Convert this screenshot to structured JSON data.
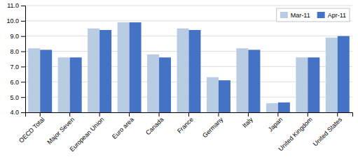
{
  "chart_data": {
    "type": "bar",
    "categories": [
      "OECD Total",
      "Major Seven",
      "European Union",
      "Euro area",
      "Canada",
      "France",
      "Germany",
      "Italy",
      "Japan",
      "United Kingdom",
      "United States"
    ],
    "series": [
      {
        "name": "Mar-11",
        "color": "#b8cce4",
        "values": [
          8.2,
          7.6,
          9.5,
          9.9,
          7.8,
          9.5,
          6.3,
          8.2,
          4.6,
          7.6,
          8.9
        ]
      },
      {
        "name": "Apr-11",
        "color": "#4472c4",
        "values": [
          8.1,
          7.6,
          9.4,
          9.9,
          7.6,
          9.4,
          6.1,
          8.1,
          4.65,
          7.6,
          9.0
        ]
      }
    ],
    "ylim": [
      4.0,
      11.0
    ],
    "yticks": [
      {
        "value": 4.0,
        "label": "4.0"
      },
      {
        "value": 5.0,
        "label": "5.0"
      },
      {
        "value": 6.0,
        "label": "6.0"
      },
      {
        "value": 7.0,
        "label": "7.0"
      },
      {
        "value": 8.0,
        "label": "8.0"
      },
      {
        "value": 9.0,
        "label": "9.0"
      },
      {
        "value": 10.0,
        "label": "10.0"
      },
      {
        "value": 11.0,
        "label": "11.0"
      }
    ],
    "grid": true,
    "legend": "upper right"
  }
}
